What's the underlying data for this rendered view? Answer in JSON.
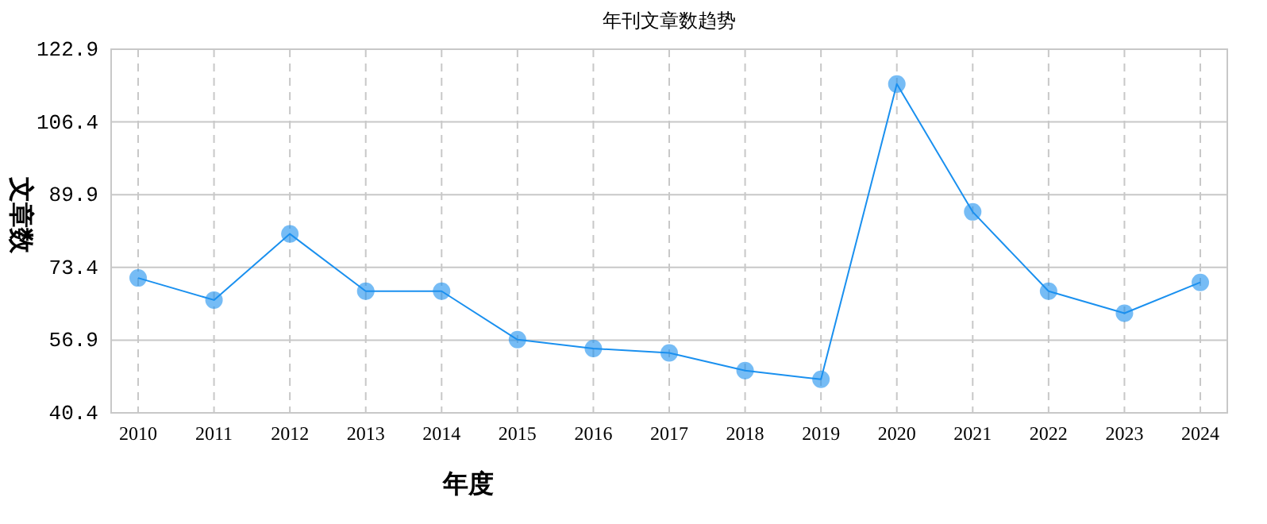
{
  "chart_data": {
    "type": "line",
    "title": "年刊文章数趋势",
    "xlabel": "年度",
    "ylabel": "文章数",
    "categories": [
      "2010",
      "2011",
      "2012",
      "2013",
      "2014",
      "2015",
      "2016",
      "2017",
      "2018",
      "2019",
      "2020",
      "2021",
      "2022",
      "2023",
      "2024"
    ],
    "series": [
      {
        "color": "#1a90ef",
        "values": [
          71,
          66,
          81,
          68,
          68,
          57,
          55,
          54,
          50,
          48,
          115,
          86,
          68,
          63,
          70
        ]
      }
    ],
    "ylim": [
      40.4,
      122.9
    ],
    "yticks": [
      40.4,
      56.9,
      73.4,
      89.9,
      106.4,
      122.9
    ],
    "grid": true,
    "marker": "circle",
    "line_style": "solid"
  }
}
